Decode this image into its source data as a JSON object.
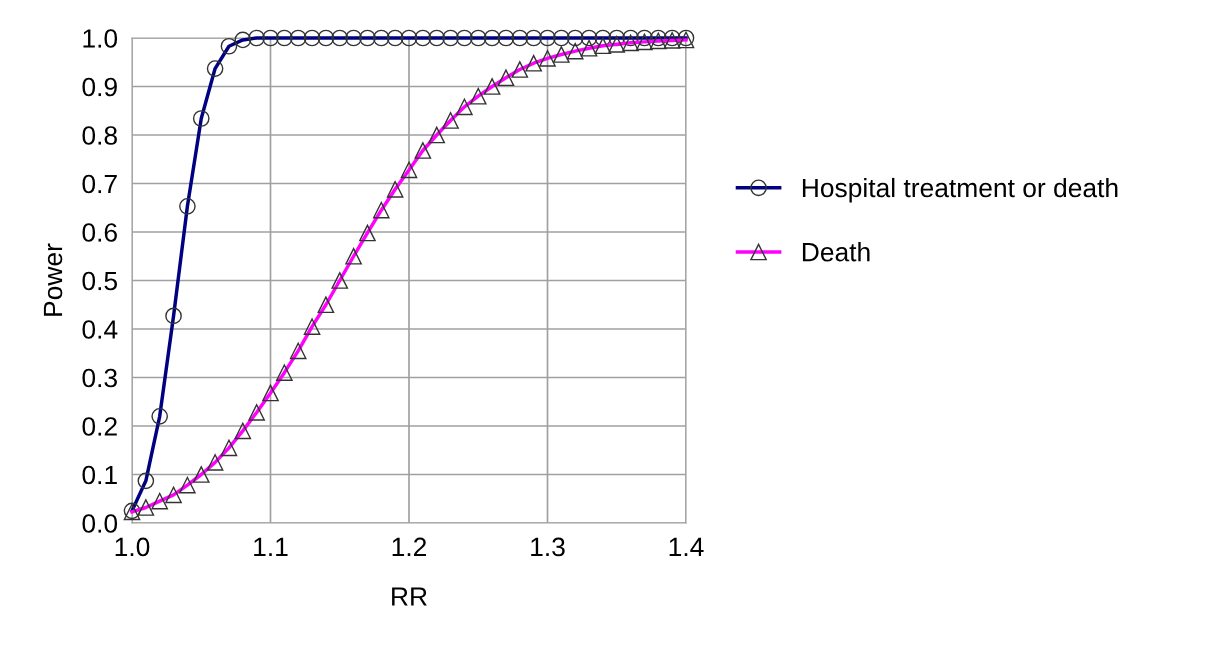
{
  "chart_data": {
    "type": "line",
    "xlabel": "RR",
    "ylabel": "Power",
    "x": [
      1.0,
      1.01,
      1.02,
      1.03,
      1.04,
      1.05,
      1.06,
      1.07,
      1.08,
      1.09,
      1.1,
      1.11,
      1.12,
      1.13,
      1.14,
      1.15,
      1.16,
      1.17,
      1.18,
      1.19,
      1.2,
      1.21,
      1.22,
      1.23,
      1.24,
      1.25,
      1.26,
      1.27,
      1.28,
      1.29,
      1.3,
      1.31,
      1.32,
      1.33,
      1.34,
      1.35,
      1.36,
      1.37,
      1.38,
      1.39,
      1.4
    ],
    "series": [
      {
        "name": "Hospital treatment or death",
        "color": "#000080",
        "marker": "circle",
        "values": [
          0.025,
          0.087,
          0.22,
          0.427,
          0.653,
          0.834,
          0.937,
          0.983,
          0.996,
          1.0,
          1.0,
          1.0,
          1.0,
          1.0,
          1.0,
          1.0,
          1.0,
          1.0,
          1.0,
          1.0,
          1.0,
          1.0,
          1.0,
          1.0,
          1.0,
          1.0,
          1.0,
          1.0,
          1.0,
          1.0,
          1.0,
          1.0,
          1.0,
          1.0,
          1.0,
          1.0,
          1.0,
          1.0,
          1.0,
          1.0,
          1.0
        ]
      },
      {
        "name": "Death",
        "color": "#ff00ff",
        "marker": "triangle",
        "values": [
          0.023,
          0.032,
          0.045,
          0.058,
          0.078,
          0.1,
          0.125,
          0.155,
          0.19,
          0.228,
          0.268,
          0.31,
          0.355,
          0.405,
          0.45,
          0.5,
          0.55,
          0.598,
          0.645,
          0.688,
          0.728,
          0.768,
          0.8,
          0.83,
          0.858,
          0.88,
          0.9,
          0.918,
          0.935,
          0.948,
          0.958,
          0.966,
          0.973,
          0.979,
          0.984,
          0.987,
          0.99,
          0.992,
          0.994,
          0.995,
          0.996
        ]
      }
    ],
    "xlim": [
      1.0,
      1.4
    ],
    "xticks": [
      {
        "value": 1.0,
        "label": "1.0"
      },
      1.1,
      1.2,
      1.3,
      1.4
    ],
    "ylim": [
      0.0,
      1.0
    ],
    "yticks": [
      {
        "value": 0.0,
        "label": "0.0"
      },
      0.1,
      0.2,
      0.3,
      0.4,
      0.5,
      0.6,
      0.7,
      0.8,
      0.9,
      {
        "value": 1.0,
        "label": "1.0"
      }
    ],
    "grid": true,
    "legend": "right",
    "line_style": "solid"
  }
}
